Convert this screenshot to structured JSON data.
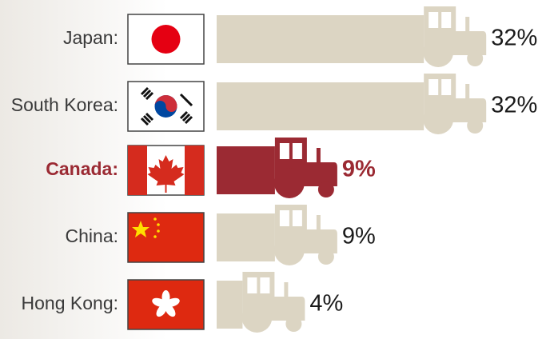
{
  "chart_data": {
    "type": "bar",
    "categories": [
      "Japan:",
      "South Korea:",
      "Canada:",
      "China:",
      "Hong Kong:"
    ],
    "values": [
      32,
      32,
      9,
      9,
      4
    ],
    "value_labels": [
      "32%",
      "32%",
      "9%",
      "9%",
      "4%"
    ],
    "color": "#dcd5c3",
    "highlight": "Canada:",
    "highlight_color": "#9b2a33"
  }
}
